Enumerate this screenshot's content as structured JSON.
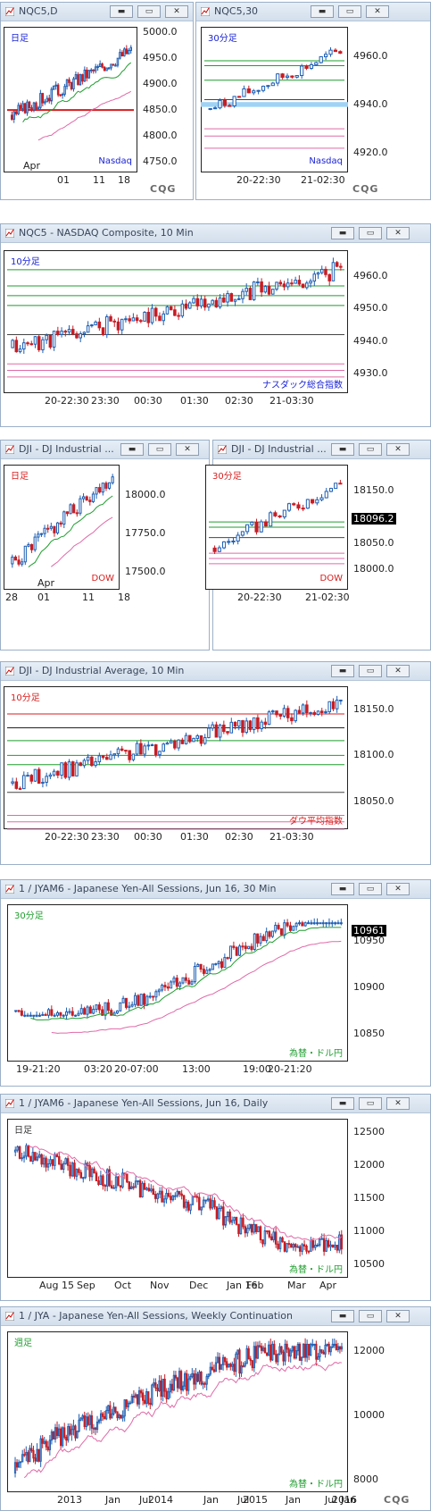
{
  "windows": [
    {
      "title": "NQC5,D",
      "corner": "日足",
      "marker": "Nasdaq",
      "yticks": [
        "5000.0",
        "4950.0",
        "4900.0",
        "4850.0",
        "4800.0",
        "4750.0"
      ],
      "xticks": [
        "Apr",
        "01",
        "11",
        "18"
      ],
      "logo": "CQG"
    },
    {
      "title": "NQC5,30",
      "corner": "30分足",
      "marker": "Nasdaq",
      "yticks": [
        "4960.0",
        "4940.0",
        "4920.0"
      ],
      "xticks": [
        "20-22:30",
        "21-02:30"
      ],
      "logo": "CQG"
    },
    {
      "title": "NQC5 - NASDAQ Composite, 10 Min",
      "corner": "10分足",
      "marker": "ナスダック総合指数",
      "yticks": [
        "4960.0",
        "4950.0",
        "4940.0",
        "4930.0"
      ],
      "xticks": [
        "20-22:30",
        "23:30",
        "00:30",
        "01:30",
        "02:30",
        "21-03:30"
      ]
    },
    {
      "title": "DJI - DJ Industrial ...",
      "corner": "日足",
      "marker": "DOW",
      "yticks": [
        "18000.0",
        "17750.0",
        "17500.0"
      ],
      "xticks": [
        "28",
        "01",
        "Apr",
        "11",
        "18"
      ]
    },
    {
      "title": "DJI - DJ Industrial ...",
      "corner": "30分足",
      "marker": "DOW",
      "yticks": [
        "18150.0",
        "18050.0",
        "18000.0"
      ],
      "tag": "18096.2",
      "xticks": [
        "20-22:30",
        "21-02:30"
      ]
    },
    {
      "title": "DJI - DJ Industrial Average, 10 Min",
      "corner": "10分足",
      "marker": "ダウ平均指数",
      "yticks": [
        "18150.0",
        "18100.0",
        "18050.0"
      ],
      "xticks": [
        "20-22:30",
        "23:30",
        "00:30",
        "01:30",
        "02:30",
        "21-03:30"
      ]
    },
    {
      "title": "1 / JYAM6 - Japanese Yen-All Sessions, Jun 16, 30 Min",
      "corner": "30分足",
      "marker": "為替・ドル円",
      "yticks": [
        "10950",
        "10900",
        "10850"
      ],
      "tag": "10961",
      "xticks": [
        "19-21:20",
        "03:20",
        "20-07:00",
        "13:00",
        "19:00",
        "20-21:20"
      ]
    },
    {
      "title": "1 / JYAM6 - Japanese Yen-All Sessions, Jun 16, Daily",
      "corner": "日足",
      "marker": "為替・ドル円",
      "yticks": [
        "12500",
        "12000",
        "11500",
        "11000",
        "10500"
      ],
      "xticks": [
        "Aug 15",
        "Sep",
        "Oct",
        "Nov",
        "Dec",
        "Jan 16",
        "Feb",
        "Mar",
        "Apr"
      ]
    },
    {
      "title": "1 / JYA - Japanese Yen-All Sessions, Weekly Continuation",
      "corner": "週足",
      "marker": "為替・ドル円",
      "yticks": [
        "12000",
        "10000",
        "8000"
      ],
      "xticks": [
        "2013",
        "Jan",
        "Jul",
        "2014",
        "Jan",
        "Jul",
        "2015",
        "Jan",
        "Jul",
        "2016",
        "Jan"
      ],
      "logo": "CQG"
    }
  ],
  "colors": {
    "up": "#1e5fb4",
    "down": "#c61d24",
    "pink": "#e06aa8",
    "green": "#1e9e2e",
    "red": "#d81d1d",
    "marker_blue": "#1a23d6",
    "marker_red": "#d81d1d",
    "marker_green": "#1e9e2e"
  },
  "icons": [
    "chart-icon",
    "minimize-icon",
    "restore-icon",
    "close-icon"
  ],
  "chart_data": [
    {
      "type": "candlestick",
      "name": "NQC5 Daily",
      "ylim": [
        4730,
        5010
      ],
      "close_range": [
        4820,
        4970
      ]
    },
    {
      "type": "candlestick",
      "name": "NQC5 30 Min",
      "ylim": [
        4912,
        4972
      ],
      "close_range": [
        4938,
        4966
      ]
    },
    {
      "type": "candlestick",
      "name": "NQC5 10 Min",
      "ylim": [
        4924,
        4968
      ],
      "close_range": [
        4935,
        4966
      ]
    },
    {
      "type": "candlestick",
      "name": "DJI Daily",
      "ylim": [
        17380,
        18200
      ],
      "close_range": [
        17520,
        18150
      ]
    },
    {
      "type": "candlestick",
      "name": "DJI 30 Min",
      "ylim": [
        17960,
        18200
      ],
      "close_range": [
        18030,
        18170
      ],
      "last": 18096.2
    },
    {
      "type": "candlestick",
      "name": "DJI 10 Min",
      "ylim": [
        18020,
        18175
      ],
      "close_range": [
        18060,
        18160
      ]
    },
    {
      "type": "candlestick",
      "name": "JYAM6 30 Min",
      "ylim": [
        10820,
        10990
      ],
      "close_range": [
        10870,
        10970
      ],
      "last": 10961
    },
    {
      "type": "candlestick",
      "name": "JYAM6 Daily",
      "ylim": [
        10300,
        12700
      ],
      "close_range": [
        10700,
        12300
      ]
    },
    {
      "type": "candlestick",
      "name": "JYA Weekly",
      "ylim": [
        7600,
        12600
      ],
      "close_range": [
        8100,
        12200
      ]
    }
  ]
}
